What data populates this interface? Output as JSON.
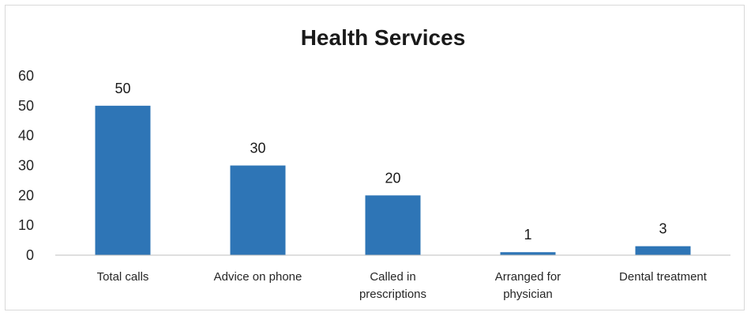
{
  "chart_data": {
    "type": "bar",
    "title": "Health Services",
    "categories": [
      [
        "Total calls"
      ],
      [
        "Advice on phone"
      ],
      [
        "Called in",
        "prescriptions"
      ],
      [
        "Arranged for",
        "physician"
      ],
      [
        "Dental treatment"
      ]
    ],
    "values": [
      50,
      30,
      20,
      1,
      3
    ],
    "data_labels": [
      "50",
      "30",
      "20",
      "1",
      "3"
    ],
    "ylim": [
      0,
      60
    ],
    "yticks": [
      "0",
      "10",
      "20",
      "30",
      "40",
      "50",
      "60"
    ],
    "xlabel": "",
    "ylabel": "",
    "grid": false,
    "legend": "none",
    "bar_color": "#2E75B6"
  }
}
